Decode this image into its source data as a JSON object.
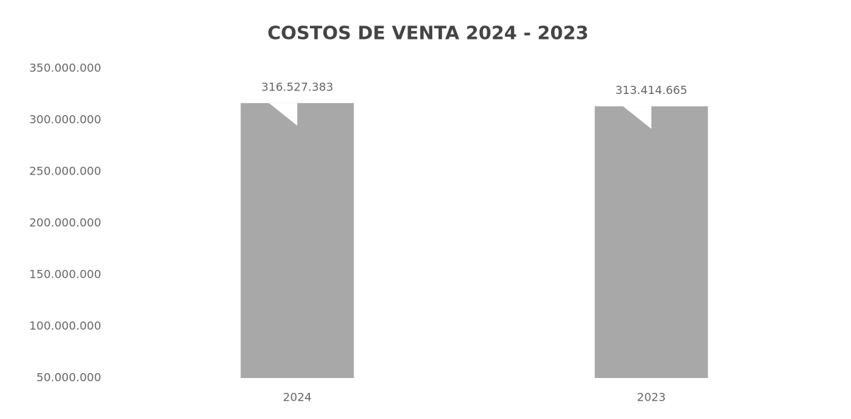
{
  "chart_data": {
    "type": "bar",
    "title": "COSTOS DE VENTA 2024 - 2023",
    "categories": [
      "2024",
      "2023"
    ],
    "values": [
      316527383,
      313414665
    ],
    "value_labels": [
      "316.527.383",
      "313.414.665"
    ],
    "color": "#a8a8a8",
    "ylim": [
      50000000,
      350000000
    ],
    "yticks": [
      {
        "value": 50000000,
        "label": "50.000.000"
      },
      {
        "value": 100000000,
        "label": "100.000.000"
      },
      {
        "value": 150000000,
        "label": "150.000.000"
      },
      {
        "value": 200000000,
        "label": "200.000.000"
      },
      {
        "value": 250000000,
        "label": "250.000.000"
      },
      {
        "value": 300000000,
        "label": "300.000.000"
      },
      {
        "value": 350000000,
        "label": "350.000.000"
      }
    ],
    "grid": false
  }
}
